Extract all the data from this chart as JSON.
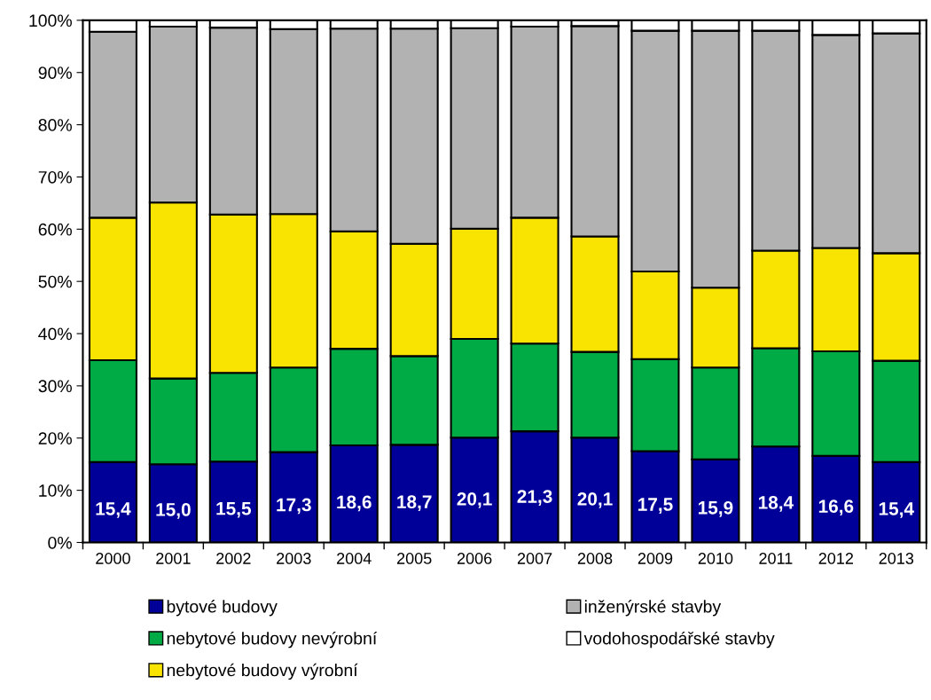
{
  "chart_data": {
    "type": "bar",
    "stacked": true,
    "categories": [
      "2000",
      "2001",
      "2002",
      "2003",
      "2004",
      "2005",
      "2006",
      "2007",
      "2008",
      "2009",
      "2010",
      "2011",
      "2012",
      "2013"
    ],
    "series": [
      {
        "name": "bytové budovy",
        "color": "#000099",
        "values": [
          15.4,
          15.0,
          15.5,
          17.3,
          18.6,
          18.7,
          20.1,
          21.3,
          20.1,
          17.5,
          15.9,
          18.4,
          16.6,
          15.4
        ],
        "value_labels": [
          "15,4",
          "15,0",
          "15,5",
          "17,3",
          "18,6",
          "18,7",
          "20,1",
          "21,3",
          "20,1",
          "17,5",
          "15,9",
          "18,4",
          "16,6",
          "15,4"
        ]
      },
      {
        "name": "nebytové budovy nevýrobní",
        "color": "#00aa44",
        "values": [
          19.5,
          16.4,
          17.0,
          16.2,
          18.5,
          17.0,
          18.9,
          16.8,
          16.4,
          17.6,
          17.6,
          18.8,
          20.0,
          19.4
        ]
      },
      {
        "name": "nebytové budovy výrobní",
        "color": "#f8e400",
        "values": [
          27.3,
          33.7,
          30.3,
          29.4,
          22.5,
          21.5,
          21.1,
          24.1,
          22.1,
          16.8,
          15.3,
          18.7,
          19.8,
          20.6
        ]
      },
      {
        "name": "inženýrské stavby",
        "color": "#b2b2b2",
        "values": [
          35.6,
          33.7,
          35.8,
          35.4,
          38.8,
          41.2,
          38.4,
          36.6,
          40.3,
          46.1,
          49.2,
          42.1,
          40.8,
          42.1
        ]
      },
      {
        "name": "vodohospodářské stavby",
        "color": "#ffffff",
        "values": [
          2.2,
          1.2,
          1.4,
          1.7,
          1.6,
          1.6,
          1.5,
          1.2,
          1.1,
          2.0,
          2.0,
          2.0,
          2.8,
          2.5
        ]
      }
    ],
    "ylim": [
      0,
      100
    ],
    "yticks": [
      {
        "value": 0,
        "label": "0%"
      },
      {
        "value": 10,
        "label": "10%"
      },
      {
        "value": 20,
        "label": "20%"
      },
      {
        "value": 30,
        "label": "30%"
      },
      {
        "value": 40,
        "label": "40%"
      },
      {
        "value": 50,
        "label": "50%"
      },
      {
        "value": 60,
        "label": "60%"
      },
      {
        "value": 70,
        "label": "70%"
      },
      {
        "value": 80,
        "label": "80%"
      },
      {
        "value": 90,
        "label": "90%"
      },
      {
        "value": 100,
        "label": "100%"
      }
    ],
    "grid": false,
    "legend": "bottom"
  }
}
